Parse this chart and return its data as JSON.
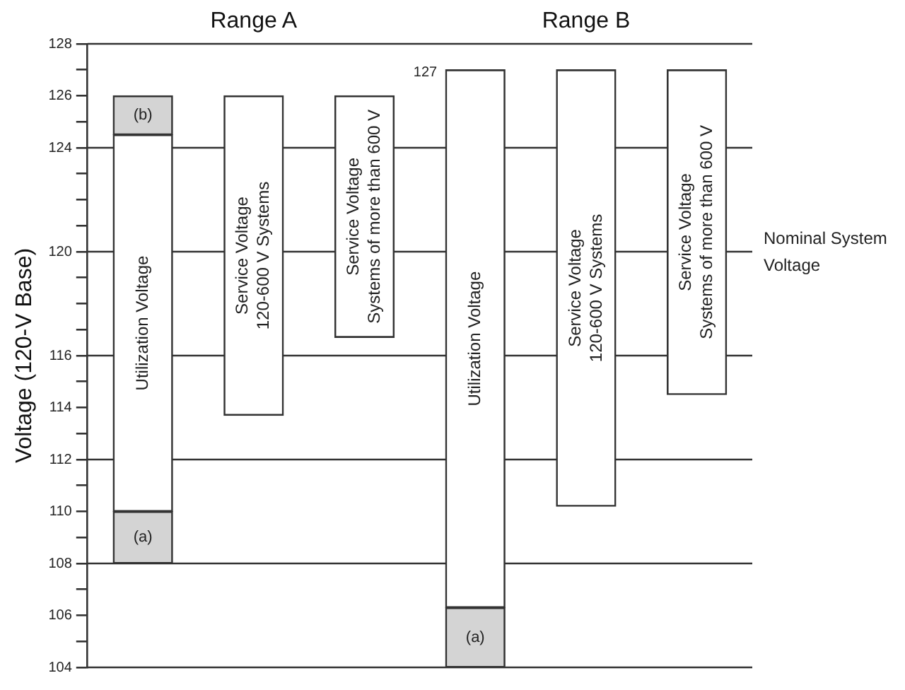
{
  "chart_data": {
    "type": "bar",
    "ylabel": "Voltage (120-V Base)",
    "tick_labels": "y",
    "categories": [
      null,
      null,
      null,
      null,
      null,
      null
    ],
    "series": [
      {
        "color": "#ffffff",
        "base": [
          110,
          113.7,
          116.7,
          106.3,
          110.2,
          114.5
        ],
        "values": [
          14.5,
          12.3,
          9.3,
          20.7,
          16.8,
          12.5
        ],
        "value_labels": [
          "Utilization Voltage",
          "Service Voltage\n120-600 V Systems",
          "Service Voltage\nSystems of more than 600 V",
          "Utilization Voltage",
          "Service Voltage\n120-600 V Systems",
          "Service Voltage\nSystems of more than 600 V"
        ]
      },
      {
        "color": "#d4d4d4",
        "base": [
          108,
          null,
          null,
          104,
          null,
          null
        ],
        "values": [
          2,
          null,
          null,
          2.3,
          null,
          null
        ],
        "value_labels": [
          "(a)",
          null,
          null,
          "(a)",
          null,
          null
        ]
      },
      {
        "color": "#d4d4d4",
        "base": [
          124.5,
          null,
          null,
          null,
          null,
          null
        ],
        "values": [
          1.5,
          null,
          null,
          null,
          null,
          null
        ],
        "value_labels": [
          "(b)",
          null,
          null,
          null,
          null,
          null
        ]
      }
    ],
    "ylim": [
      104,
      128
    ],
    "yticks": [
      104,
      {
        "value": 105,
        "label": null
      },
      106,
      {
        "value": 107,
        "label": null
      },
      108,
      {
        "value": 109,
        "label": null
      },
      110,
      {
        "value": 111,
        "label": null
      },
      112,
      {
        "value": 113,
        "label": null
      },
      114,
      {
        "value": 115,
        "label": null
      },
      116,
      {
        "value": 117,
        "label": null
      },
      {
        "value": 118,
        "label": null
      },
      {
        "value": 119,
        "label": null
      },
      120,
      {
        "value": 121,
        "label": null
      },
      {
        "value": 122,
        "label": null
      },
      {
        "value": 123,
        "label": null
      },
      124,
      {
        "value": 125,
        "label": null
      },
      126,
      {
        "value": 127,
        "label": null
      },
      128
    ],
    "ref_lines": [
      {
        "axis": "y",
        "value": 108
      },
      {
        "axis": "y",
        "value": 112
      },
      {
        "axis": "y",
        "value": 116
      },
      {
        "axis": "y",
        "value": 120,
        "label": "Nominal System\nVoltage"
      },
      {
        "axis": "y",
        "value": 124
      }
    ],
    "annotations": [
      "Range A",
      "Range B",
      "127"
    ]
  }
}
